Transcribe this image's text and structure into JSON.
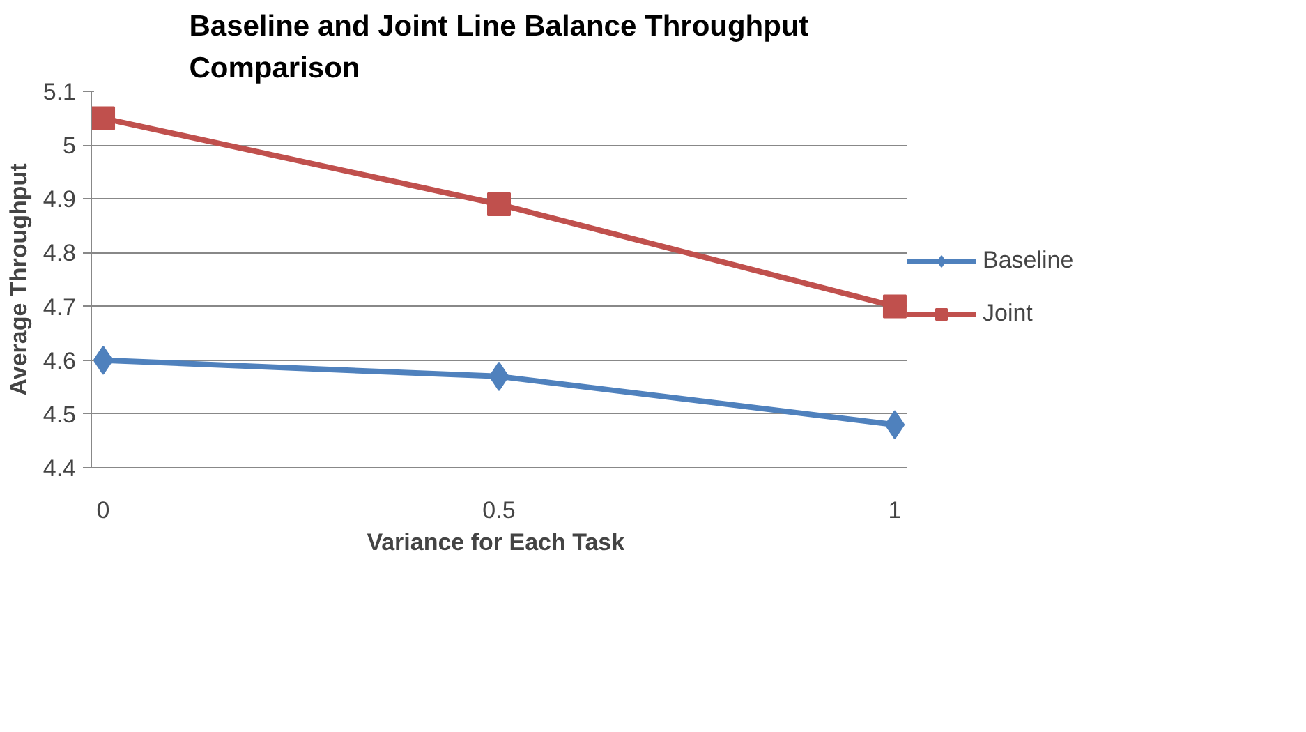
{
  "chart_data": {
    "type": "line",
    "title": "Baseline and Joint Line Balance Throughput Comparison",
    "xlabel": "Variance  for Each Task",
    "ylabel": "Average Throughput",
    "categories": [
      "0",
      "0.5",
      "1"
    ],
    "series": [
      {
        "name": "Baseline",
        "color": "#4f81bd",
        "marker": "diamond",
        "values": [
          4.6,
          4.57,
          4.48
        ]
      },
      {
        "name": "Joint",
        "color": "#c0504d",
        "marker": "square",
        "values": [
          5.05,
          4.89,
          4.7
        ]
      }
    ],
    "ylim": [
      4.4,
      5.1
    ],
    "yticks": [
      4.4,
      4.5,
      4.6,
      4.7,
      4.8,
      4.9,
      5,
      5.1
    ],
    "grid": "y",
    "legend": "right",
    "line_style": "solid"
  }
}
